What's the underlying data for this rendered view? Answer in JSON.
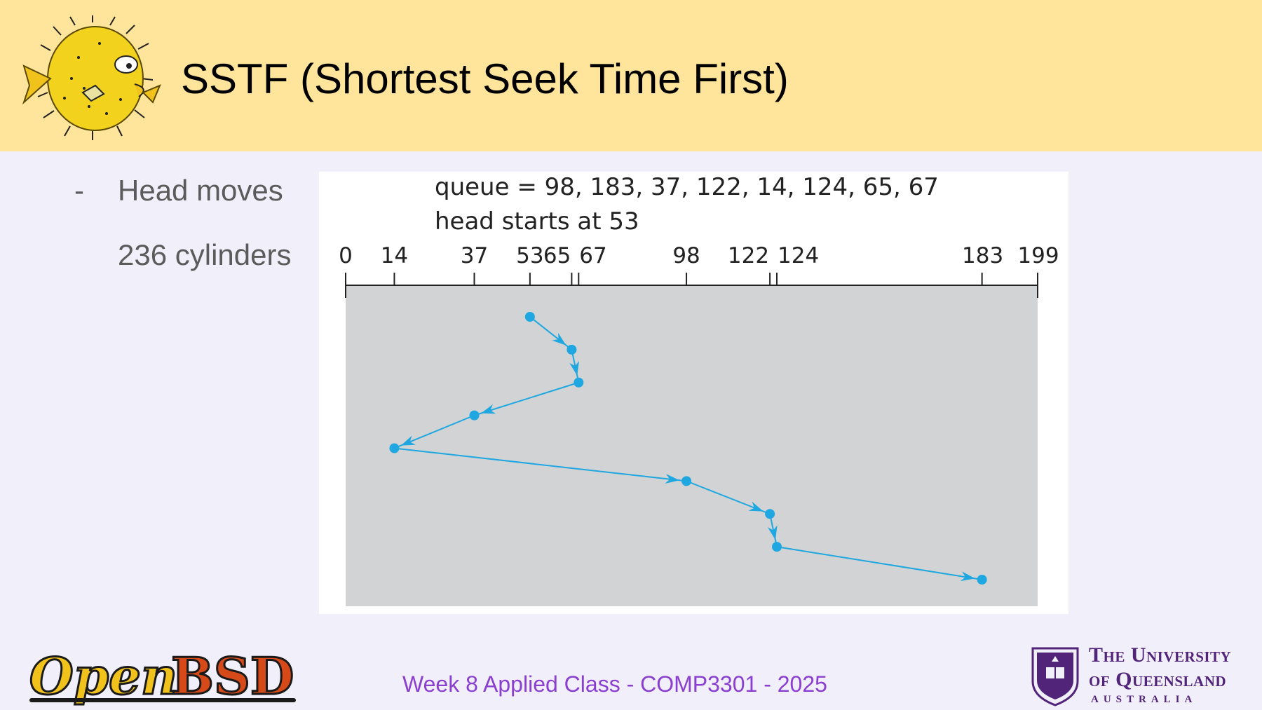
{
  "slide": {
    "title": "SSTF (Shortest Seek Time First)",
    "bullet_dash": "-",
    "bullet_line1": "Head moves",
    "bullet_line2": "236 cylinders",
    "footer": "Week 8 Applied Class - COMP3301 - 2025"
  },
  "logos": {
    "openbsd_part1": "Open",
    "openbsd_part2": "BSD",
    "uq_line1": "The University",
    "uq_line2": "of Queensland",
    "uq_line3": "AUSTRALIA"
  },
  "colors": {
    "header_bg": "#ffe49b",
    "page_bg": "#f1effa",
    "path": "#1ea7e0",
    "plot_bg": "#d1d3d4",
    "footer_text": "#8a3fd0",
    "uq_purple": "#51247a"
  },
  "chart_data": {
    "type": "line",
    "queue_label": "queue = 98, 183, 37, 122, 14, 124, 65, 67",
    "head_label": "head starts at 53",
    "axis_min": 0,
    "axis_max": 199,
    "ticks": [
      0,
      14,
      37,
      53,
      65,
      67,
      98,
      122,
      124,
      183,
      199
    ],
    "tick_labels": [
      {
        "value": 0,
        "label": "0"
      },
      {
        "value": 14,
        "label": "14"
      },
      {
        "value": 37,
        "label": "37"
      },
      {
        "value": 53,
        "label": "53"
      },
      {
        "value": 65,
        "label": "65"
      },
      {
        "value": 67,
        "label": "67"
      },
      {
        "value": 98,
        "label": "98"
      },
      {
        "value": 122,
        "label": "122"
      },
      {
        "value": 124,
        "label": "124"
      },
      {
        "value": 183,
        "label": "183"
      },
      {
        "value": 199,
        "label": "199"
      }
    ],
    "path": [
      53,
      65,
      67,
      37,
      14,
      98,
      122,
      124,
      183
    ],
    "total_head_movement": 236
  }
}
